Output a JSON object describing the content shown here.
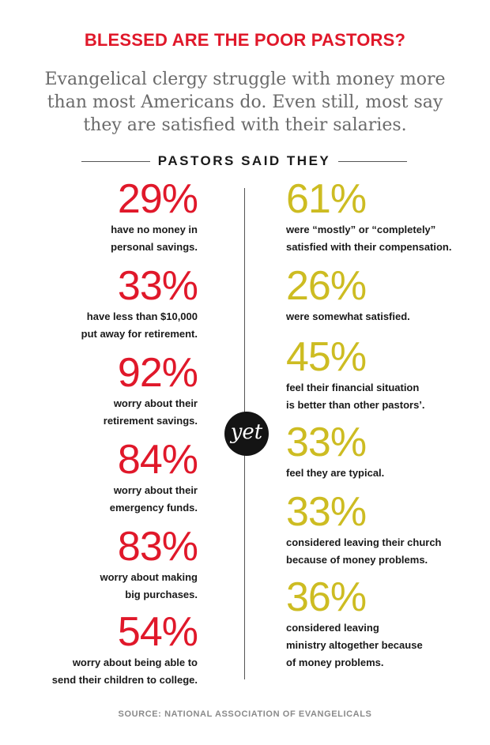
{
  "title": "BLESSED ARE THE POOR PASTORS?",
  "subtitle": "Evangelical clergy struggle with money more than most Americans do. Even still, most say they are satisfied with their salaries.",
  "section_label": "PASTORS SAID THEY",
  "yet_label": "yet",
  "left_stats": [
    {
      "pct": "29%",
      "desc": "have no money in\npersonal savings."
    },
    {
      "pct": "33%",
      "desc": "have less than $10,000\nput away for retirement."
    },
    {
      "pct": "92%",
      "desc": "worry about their\nretirement savings."
    },
    {
      "pct": "84%",
      "desc": "worry about their\nemergency funds."
    },
    {
      "pct": "83%",
      "desc": "worry about making\nbig purchases."
    },
    {
      "pct": "54%",
      "desc": "worry about being able to\nsend their children to college."
    }
  ],
  "right_stats": [
    {
      "pct": "61%",
      "desc": "were “mostly” or “completely”\nsatisfied with their compensation."
    },
    {
      "pct": "26%",
      "desc": "were somewhat satisfied."
    },
    {
      "pct": "45%",
      "desc": "feel their financial situation\nis better than other pastors’."
    },
    {
      "pct": "33%",
      "desc": "feel they are typical."
    },
    {
      "pct": "33%",
      "desc": "considered leaving their church\nbecause of money problems."
    },
    {
      "pct": "36%",
      "desc": "considered leaving\nministry altogether because\nof money problems."
    }
  ],
  "source": "SOURCE: NATIONAL ASSOCIATION OF EVANGELICALS",
  "colors": {
    "accent_red": "#e0182a",
    "accent_yellow": "#cdbc22",
    "circle": "#141414"
  }
}
